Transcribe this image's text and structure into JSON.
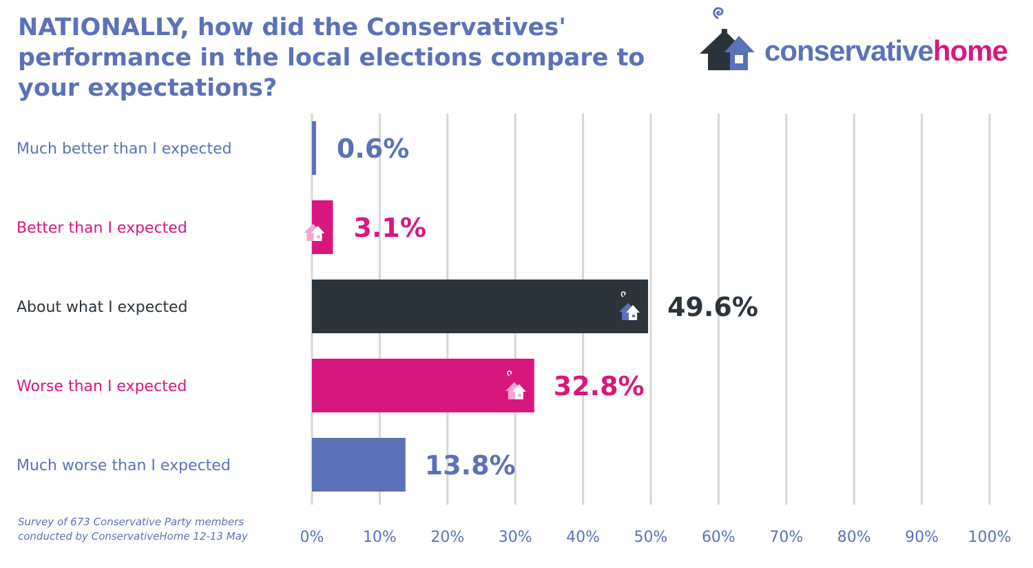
{
  "title": "NATIONALLY, how did the Conservatives' performance in the local elections compare to your expectations?",
  "logo": {
    "word1": "conservative",
    "word2": "home",
    "icon": "house-logo-icon"
  },
  "source_line1": "Survey of 673 Conservative Party members",
  "source_line2": "conducted by ConservativeHome 12-13 May",
  "colors": {
    "blue": "#5b72b8",
    "pink": "#d8177e",
    "dark": "#2b343b",
    "grid": "#d6d6d6"
  },
  "chart_data": {
    "type": "bar",
    "orientation": "horizontal",
    "categories": [
      "Much better than I expected",
      "Better than I expected",
      "About what I expected",
      "Worse than I expected",
      "Much worse than I expected"
    ],
    "values": [
      0.6,
      3.1,
      49.6,
      32.8,
      13.8
    ],
    "value_labels": [
      "0.6%",
      "3.1%",
      "49.6%",
      "32.8%",
      "13.8%"
    ],
    "bar_colors": [
      "#5b72b8",
      "#d8177e",
      "#2b343b",
      "#d8177e",
      "#5b72b8"
    ],
    "label_colors": [
      "#5b72b8",
      "#d8177e",
      "#2b343b",
      "#d8177e",
      "#5b72b8"
    ],
    "house_icon_on_bar": [
      false,
      true,
      true,
      true,
      false
    ],
    "xlim": [
      0,
      100
    ],
    "xticks": [
      0,
      10,
      20,
      30,
      40,
      50,
      60,
      70,
      80,
      90,
      100
    ],
    "xtick_labels": [
      "0%",
      "10%",
      "20%",
      "30%",
      "40%",
      "50%",
      "60%",
      "70%",
      "80%",
      "90%",
      "100%"
    ],
    "grid": true,
    "legend": "none"
  }
}
